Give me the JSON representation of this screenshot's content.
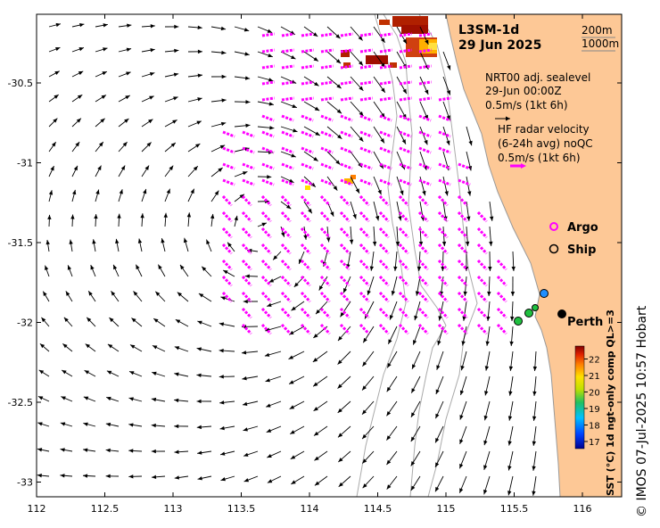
{
  "header": {
    "product": "L3SM-1d",
    "date": "29 Jun 2025"
  },
  "isobaths": [
    "200m",
    "1000m"
  ],
  "sealevel": {
    "title": "NRT00 adj. sealevel",
    "time": "29-Jun 00:00Z",
    "scale": "0.5m/s (1kt 6h)"
  },
  "radar": {
    "title": "HF radar velocity",
    "subtitle": "(6-24h avg) noQC",
    "scale": "0.5m/s (1kt 6h)",
    "color": "#ff00ff"
  },
  "legend": {
    "argo": "Argo",
    "ship": "Ship"
  },
  "place": {
    "name": "Perth"
  },
  "colorbar": {
    "label": "SST (°C) 1d ngt-only comp QL>=3",
    "ticks": [
      17,
      18,
      19,
      20,
      21,
      22
    ]
  },
  "credit": "© IMOS 07-Jul-2025 10:57 Hobart",
  "axes": {
    "x_ticks": [
      "112",
      "112.5",
      "113",
      "113.5",
      "114",
      "114.5",
      "115",
      "115.5",
      "116"
    ],
    "y_ticks": [
      "-30.5",
      "-31",
      "-31.5",
      "-32",
      "-32.5",
      "-33"
    ]
  },
  "colors": {
    "land": "#fdc896",
    "arrow": "#000000",
    "coast": "#aaaaaa",
    "radar": "#ff00ff"
  }
}
